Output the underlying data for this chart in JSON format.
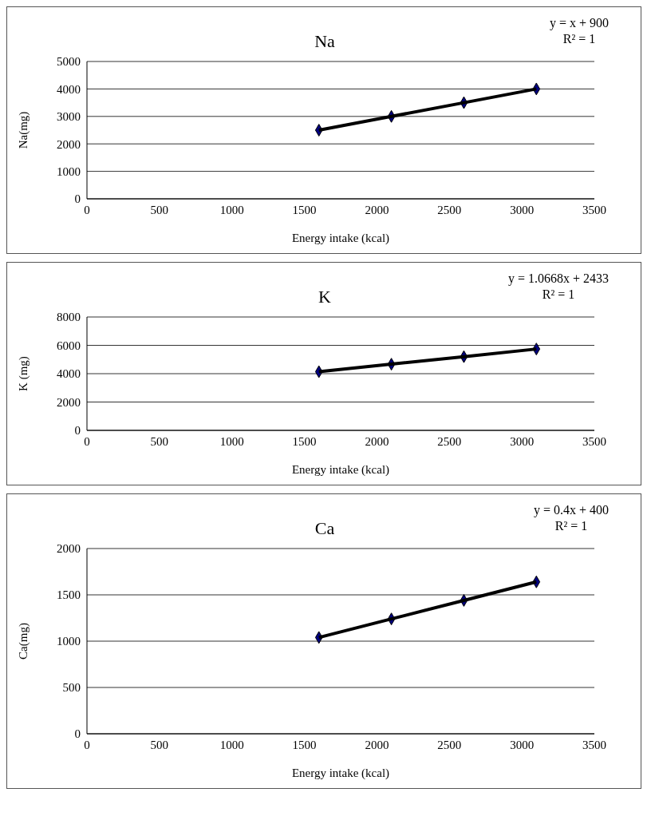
{
  "chart_data": [
    {
      "type": "scatter",
      "title": "Na",
      "xlabel": "Energy intake (kcal)",
      "ylabel": "Na(mg)",
      "annotations": [
        "y = x + 900",
        "R² = 1"
      ],
      "x": [
        1600,
        2100,
        2600,
        3100
      ],
      "xlim": [
        0,
        3500
      ],
      "xticks": [
        0,
        500,
        1000,
        1500,
        2000,
        2500,
        3000,
        3500
      ],
      "ylim": [
        0,
        5000
      ],
      "yticks": [
        0,
        1000,
        2000,
        3000,
        4000,
        5000
      ],
      "grid": "y",
      "series": [
        {
          "color": "#000080",
          "marker": "diamond",
          "values": [
            2500,
            3000,
            3500,
            4000
          ]
        },
        {
          "type": "line",
          "color": "#000000",
          "marker": "none",
          "values": [
            2500,
            3000,
            3500,
            4000
          ]
        }
      ]
    },
    {
      "type": "scatter",
      "title": "K",
      "xlabel": "Energy intake (kcal)",
      "ylabel": "K (mg)",
      "annotations": [
        "y = 1.0668x + 2433",
        "R² = 1"
      ],
      "x": [
        1600,
        2100,
        2600,
        3100
      ],
      "xlim": [
        0,
        3500
      ],
      "xticks": [
        0,
        500,
        1000,
        1500,
        2000,
        2500,
        3000,
        3500
      ],
      "ylim": [
        0,
        8000
      ],
      "yticks": [
        0,
        2000,
        4000,
        6000,
        8000
      ],
      "grid": "y",
      "series": [
        {
          "color": "#000080",
          "marker": "diamond",
          "values": [
            4140,
            4670,
            5200,
            5740
          ]
        },
        {
          "type": "line",
          "color": "#000000",
          "marker": "none",
          "values": [
            4140,
            4670,
            5200,
            5740
          ]
        }
      ]
    },
    {
      "type": "scatter",
      "title": "Ca",
      "xlabel": "Energy intake (kcal)",
      "ylabel": "Ca(mg)",
      "annotations": [
        "y = 0.4x + 400",
        "R² = 1"
      ],
      "x": [
        1600,
        2100,
        2600,
        3100
      ],
      "xlim": [
        0,
        3500
      ],
      "xticks": [
        0,
        500,
        1000,
        1500,
        2000,
        2500,
        3000,
        3500
      ],
      "ylim": [
        0,
        2000
      ],
      "yticks": [
        0,
        500,
        1000,
        1500,
        2000
      ],
      "grid": "y",
      "series": [
        {
          "color": "#000080",
          "marker": "diamond",
          "values": [
            1040,
            1240,
            1440,
            1640
          ]
        },
        {
          "type": "line",
          "color": "#000000",
          "marker": "none",
          "values": [
            1040,
            1240,
            1440,
            1640
          ]
        }
      ]
    }
  ]
}
